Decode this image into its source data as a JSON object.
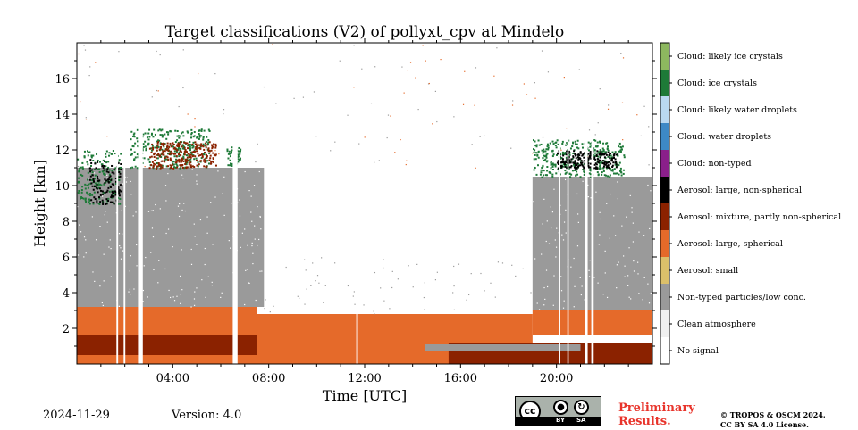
{
  "chart_data": {
    "type": "heatmap",
    "title": "Target classifications (V2) of pollyxt_cpv at Mindelo",
    "xlabel": "Time [UTC]",
    "ylabel": "Height [km]",
    "xlim": [
      0,
      24
    ],
    "ylim": [
      0,
      18
    ],
    "x_ticks": [
      {
        "value": 4,
        "label": "04:00"
      },
      {
        "value": 8,
        "label": "08:00"
      },
      {
        "value": 12,
        "label": "12:00"
      },
      {
        "value": 16,
        "label": "16:00"
      },
      {
        "value": 20,
        "label": "20:00"
      }
    ],
    "y_ticks": [
      {
        "value": 2,
        "label": "2"
      },
      {
        "value": 4,
        "label": "4"
      },
      {
        "value": 6,
        "label": "6"
      },
      {
        "value": 8,
        "label": "8"
      },
      {
        "value": 10,
        "label": "10"
      },
      {
        "value": 12,
        "label": "12"
      },
      {
        "value": 14,
        "label": "14"
      },
      {
        "value": 16,
        "label": "16"
      }
    ],
    "legend_placement": "right colorbar",
    "classes": [
      {
        "label": "No signal",
        "color": "#ffffff"
      },
      {
        "label": "Clean atmosphere",
        "color": "#f0f0f0"
      },
      {
        "label": "Non-typed particles/low conc.",
        "color": "#9a9a9a"
      },
      {
        "label": "Aerosol: small",
        "color": "#dcc06a"
      },
      {
        "label": "Aerosol: large, spherical",
        "color": "#e56a2a"
      },
      {
        "label": "Aerosol: mixture, partly non-spherical",
        "color": "#8b2200"
      },
      {
        "label": "Aerosol: large, non-spherical",
        "color": "#000000"
      },
      {
        "label": "Cloud: non-typed",
        "color": "#8a1f8a"
      },
      {
        "label": "Cloud: water droplets",
        "color": "#3d89c6"
      },
      {
        "label": "Cloud: likely water droplets",
        "color": "#b9d9f1"
      },
      {
        "label": "Cloud: ice crystals",
        "color": "#1e7a38"
      },
      {
        "label": "Cloud: likely ice crystals",
        "color": "#8db85f"
      }
    ],
    "regions": [
      {
        "class": 5,
        "t0": 0,
        "t1": 15.5,
        "h0": 0.3,
        "h1": 1.6
      },
      {
        "class": 4,
        "t0": 0,
        "t1": 24,
        "h0": 0.0,
        "h1": 0.5
      },
      {
        "class": 4,
        "t0": 0,
        "t1": 7.5,
        "h0": 1.6,
        "h1": 3.2
      },
      {
        "class": 4,
        "t0": 7.5,
        "t1": 19,
        "h0": 0.5,
        "h1": 2.8
      },
      {
        "class": 4,
        "t0": 19,
        "t1": 24,
        "h0": 1.6,
        "h1": 3.0
      },
      {
        "class": 5,
        "t0": 15.5,
        "t1": 24,
        "h0": 0.0,
        "h1": 1.2
      },
      {
        "class": 2,
        "t0": 14.5,
        "t1": 21,
        "h0": 0.7,
        "h1": 1.1
      },
      {
        "class": 2,
        "t0": 0,
        "t1": 7.8,
        "h0": 3.2,
        "h1": 11.0
      },
      {
        "class": 2,
        "t0": 19.0,
        "t1": 24,
        "h0": 3.0,
        "h1": 10.5
      }
    ],
    "clouds": [
      {
        "class": 10,
        "t0": 0,
        "t1": 1.8,
        "h0": 9.0,
        "h1": 12.0
      },
      {
        "class": 6,
        "t0": 0.5,
        "t1": 1.8,
        "h0": 9.0,
        "h1": 11.5
      },
      {
        "class": 10,
        "t0": 2.2,
        "t1": 5.5,
        "h0": 11.0,
        "h1": 13.2
      },
      {
        "class": 5,
        "t0": 3.0,
        "t1": 5.8,
        "h0": 11.0,
        "h1": 12.5
      },
      {
        "class": 10,
        "t0": 6.2,
        "t1": 6.8,
        "h0": 11.0,
        "h1": 12.2
      },
      {
        "class": 10,
        "t0": 19.0,
        "t1": 22.8,
        "h0": 10.5,
        "h1": 12.6
      },
      {
        "class": 6,
        "t0": 20.0,
        "t1": 22.5,
        "h0": 11.0,
        "h1": 12.0
      }
    ],
    "gaps": [
      {
        "t0": 1.65,
        "t1": 1.72
      },
      {
        "t0": 1.95,
        "t1": 2.02
      },
      {
        "t0": 2.55,
        "t1": 2.75
      },
      {
        "t0": 6.5,
        "t1": 6.7
      },
      {
        "t0": 11.65,
        "t1": 11.72
      },
      {
        "t0": 20.1,
        "t1": 20.16
      },
      {
        "t0": 20.45,
        "t1": 20.51
      },
      {
        "t0": 21.2,
        "t1": 21.3
      },
      {
        "t0": 21.45,
        "t1": 21.55
      }
    ]
  },
  "footer": {
    "date": "2024-11-29",
    "version": "Version: 4.0",
    "preliminary_line1": "Preliminary",
    "preliminary_line2": "Results.",
    "preliminary_color": "#e8342b",
    "copyright_line1": "© TROPOS & OSCM 2024.",
    "copyright_line2": "CC BY SA 4.0 License.",
    "badge_text": "cc",
    "badge_by": "BY",
    "badge_sa": "SA",
    "badge_by_icon": "person-icon",
    "badge_sa_icon": "share-alike-icon"
  }
}
